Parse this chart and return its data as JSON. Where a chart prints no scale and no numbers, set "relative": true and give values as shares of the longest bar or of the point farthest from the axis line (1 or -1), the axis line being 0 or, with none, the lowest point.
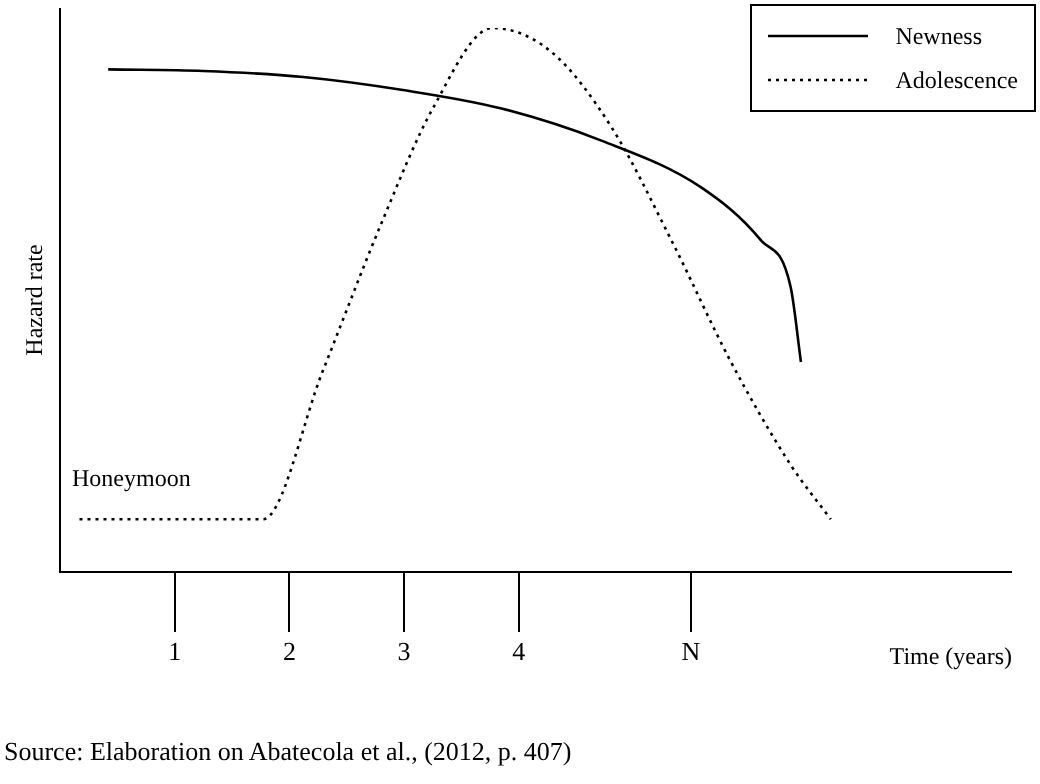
{
  "chart_data": {
    "type": "line",
    "relative": true,
    "ylabel": "Hazard rate",
    "xlabel": "Time (years)",
    "xlim": [
      0,
      8.3
    ],
    "xticks": [
      1,
      2,
      3,
      4,
      {
        "value": 5.5,
        "label": "N"
      }
    ],
    "grid": false,
    "legend": "top right",
    "marker": "none",
    "tick_labels": "x",
    "series": [
      {
        "name": "Newness",
        "color": "#000000",
        "line_style": "solid",
        "x": [
          0.42,
          1.25,
          2.12,
          2.99,
          3.85,
          4.72,
          5.59,
          6.11,
          6.37,
          6.46
        ],
        "values": [
          0.924,
          0.921,
          0.91,
          0.886,
          0.852,
          0.793,
          0.707,
          0.61,
          0.524,
          0.386
        ]
      },
      {
        "name": "Adolescence",
        "color": "#000000",
        "line_style": "dotted",
        "x": [
          0.17,
          1.77,
          2.29,
          2.81,
          3.25,
          3.77,
          4.29,
          4.81,
          5.33,
          5.85,
          6.37,
          6.72
        ],
        "values": [
          0.097,
          0.097,
          0.369,
          0.645,
          0.852,
          1.0,
          0.955,
          0.817,
          0.61,
          0.386,
          0.197,
          0.097
        ]
      }
    ],
    "annotations": [
      "Honeymoon",
      "Source: Elaboration on Abatecola et al., (2012, p. 407)"
    ]
  }
}
